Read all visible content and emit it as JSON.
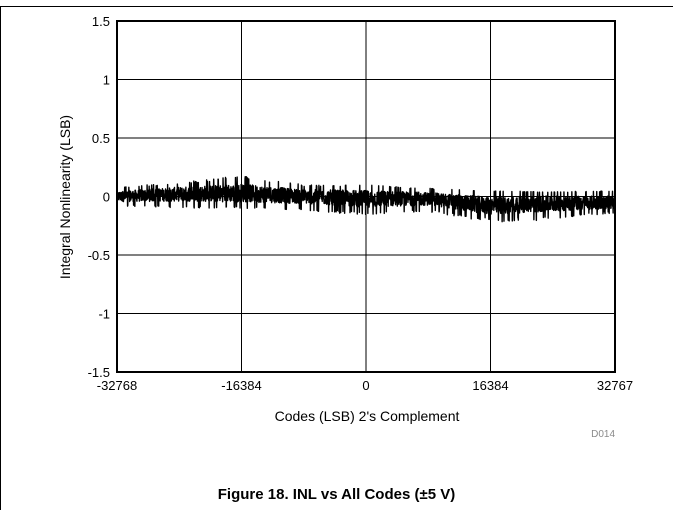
{
  "figure_caption": "Figure 18. INL vs All Codes (±5 V)",
  "figure_code": "D014",
  "chart_data": {
    "type": "line",
    "xlabel": "Codes (LSB) 2's Complement",
    "ylabel": "Integral Nonlinearity (LSB)",
    "xlim": [
      -32768,
      32767
    ],
    "ylim": [
      -1.5,
      1.5
    ],
    "x_ticks": [
      -32768,
      -16384,
      0,
      16384,
      32767
    ],
    "x_tick_labels": [
      "-32768",
      "-16384",
      "0",
      "16384",
      "32767"
    ],
    "y_ticks": [
      1.5,
      1,
      0.5,
      0,
      -0.5,
      -1,
      -1.5
    ],
    "y_tick_labels": [
      "1.5",
      "1",
      "0.5",
      "0",
      "-0.5",
      "-1",
      "-1.5"
    ],
    "grid": true,
    "series": [
      {
        "color": "#000000",
        "envelope_x": [
          -32768,
          -24576,
          -16384,
          -8192,
          0,
          8192,
          16384,
          24576,
          32767
        ],
        "envelope_center": [
          0.0,
          0.02,
          0.03,
          0.0,
          -0.02,
          -0.02,
          -0.08,
          -0.06,
          -0.05
        ],
        "envelope_upper": [
          0.08,
          0.12,
          0.18,
          0.1,
          0.1,
          0.07,
          0.05,
          0.04,
          0.05
        ],
        "envelope_lower": [
          -0.08,
          -0.1,
          -0.1,
          -0.12,
          -0.16,
          -0.13,
          -0.22,
          -0.2,
          -0.14
        ]
      }
    ]
  }
}
